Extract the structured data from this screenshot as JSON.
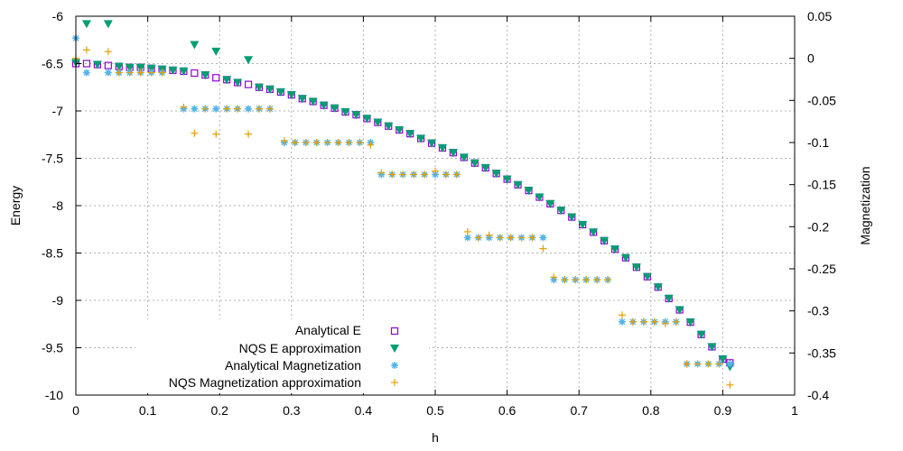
{
  "chart_data": {
    "type": "scatter",
    "xlabel": "h",
    "ylabel": "Energy",
    "y2label": "Magnetization",
    "xlim": [
      0,
      1
    ],
    "ylim": [
      -10,
      -6
    ],
    "y2lim": [
      -0.4,
      0.05
    ],
    "xticks": [
      "0",
      "0.1",
      "0.2",
      "0.3",
      "0.4",
      "0.5",
      "0.6",
      "0.7",
      "0.8",
      "0.9",
      "1"
    ],
    "yticks": [
      "-6",
      "-6.5",
      "-7",
      "-7.5",
      "-8",
      "-8.5",
      "-9",
      "-9.5",
      "-10"
    ],
    "y2ticks": [
      "0.05",
      "0",
      "-0.05",
      "-0.1",
      "-0.15",
      "-0.2",
      "-0.25",
      "-0.3",
      "-0.35",
      "-0.4"
    ],
    "grid": true,
    "legend_position": "bottom-center",
    "series": [
      {
        "name": "Analytical E",
        "axis": "y1",
        "marker": "open-square",
        "color": "#9400d3",
        "x": [
          0,
          0.015,
          0.03,
          0.045,
          0.06,
          0.075,
          0.09,
          0.105,
          0.12,
          0.135,
          0.15,
          0.165,
          0.18,
          0.195,
          0.21,
          0.225,
          0.24,
          0.255,
          0.27,
          0.285,
          0.3,
          0.315,
          0.33,
          0.345,
          0.36,
          0.375,
          0.39,
          0.405,
          0.42,
          0.435,
          0.45,
          0.465,
          0.48,
          0.495,
          0.51,
          0.525,
          0.54,
          0.555,
          0.57,
          0.585,
          0.6,
          0.615,
          0.63,
          0.645,
          0.66,
          0.675,
          0.69,
          0.705,
          0.72,
          0.735,
          0.75,
          0.765,
          0.78,
          0.795,
          0.81,
          0.825,
          0.84,
          0.855,
          0.87,
          0.885,
          0.9,
          0.91
        ],
        "y": [
          -6.5,
          -6.5,
          -6.51,
          -6.52,
          -6.53,
          -6.54,
          -6.54,
          -6.55,
          -6.56,
          -6.57,
          -6.58,
          -6.6,
          -6.62,
          -6.65,
          -6.67,
          -6.7,
          -6.72,
          -6.75,
          -6.77,
          -6.8,
          -6.83,
          -6.87,
          -6.9,
          -6.94,
          -6.97,
          -7.01,
          -7.04,
          -7.08,
          -7.12,
          -7.16,
          -7.2,
          -7.24,
          -7.29,
          -7.34,
          -7.39,
          -7.44,
          -7.49,
          -7.55,
          -7.6,
          -7.66,
          -7.72,
          -7.78,
          -7.84,
          -7.91,
          -7.98,
          -8.05,
          -8.12,
          -8.2,
          -8.28,
          -8.37,
          -8.46,
          -8.55,
          -8.65,
          -8.75,
          -8.86,
          -8.98,
          -9.1,
          -9.23,
          -9.36,
          -9.49,
          -9.62,
          -9.66
        ]
      },
      {
        "name": "NQS E approximation",
        "axis": "y1",
        "marker": "filled-triangle-down",
        "color": "#009e73",
        "x": [
          0,
          0.015,
          0.03,
          0.045,
          0.06,
          0.075,
          0.09,
          0.105,
          0.12,
          0.135,
          0.15,
          0.165,
          0.18,
          0.195,
          0.21,
          0.225,
          0.24,
          0.255,
          0.27,
          0.285,
          0.3,
          0.315,
          0.33,
          0.345,
          0.36,
          0.375,
          0.39,
          0.405,
          0.42,
          0.435,
          0.45,
          0.465,
          0.48,
          0.495,
          0.51,
          0.525,
          0.54,
          0.555,
          0.57,
          0.585,
          0.6,
          0.615,
          0.63,
          0.645,
          0.66,
          0.675,
          0.69,
          0.705,
          0.72,
          0.735,
          0.75,
          0.765,
          0.78,
          0.795,
          0.81,
          0.825,
          0.84,
          0.855,
          0.87,
          0.885,
          0.9,
          0.91
        ],
        "y": [
          -6.49,
          -6.08,
          -6.51,
          -6.08,
          -6.53,
          -6.54,
          -6.54,
          -6.55,
          -6.56,
          -6.57,
          -6.58,
          -6.3,
          -6.62,
          -6.37,
          -6.67,
          -6.7,
          -6.46,
          -6.75,
          -6.77,
          -6.8,
          -6.83,
          -6.87,
          -6.9,
          -6.94,
          -6.97,
          -7.01,
          -7.04,
          -7.08,
          -7.12,
          -7.16,
          -7.2,
          -7.24,
          -7.29,
          -7.34,
          -7.39,
          -7.44,
          -7.49,
          -7.55,
          -7.6,
          -7.66,
          -7.72,
          -7.78,
          -7.84,
          -7.91,
          -7.98,
          -8.05,
          -8.12,
          -8.2,
          -8.28,
          -8.37,
          -8.46,
          -8.55,
          -8.65,
          -8.75,
          -8.86,
          -8.98,
          -9.1,
          -9.23,
          -9.36,
          -9.49,
          -9.62,
          -9.7
        ]
      },
      {
        "name": "Analytical Magnetization",
        "axis": "y2",
        "marker": "filled-star",
        "color": "#56b4e9",
        "x": [
          0,
          0.015,
          0.045,
          0.06,
          0.075,
          0.09,
          0.105,
          0.12,
          0.15,
          0.165,
          0.18,
          0.195,
          0.21,
          0.225,
          0.24,
          0.255,
          0.27,
          0.29,
          0.305,
          0.32,
          0.335,
          0.35,
          0.365,
          0.38,
          0.395,
          0.41,
          0.425,
          0.44,
          0.455,
          0.47,
          0.485,
          0.5,
          0.515,
          0.53,
          0.545,
          0.56,
          0.575,
          0.59,
          0.605,
          0.62,
          0.635,
          0.65,
          0.665,
          0.68,
          0.695,
          0.71,
          0.725,
          0.74,
          0.76,
          0.775,
          0.79,
          0.805,
          0.82,
          0.835,
          0.85,
          0.865,
          0.88,
          0.895,
          0.91
        ],
        "y": [
          0.024,
          -0.017,
          -0.017,
          -0.017,
          -0.017,
          -0.017,
          -0.017,
          -0.017,
          -0.06,
          -0.06,
          -0.06,
          -0.06,
          -0.06,
          -0.06,
          -0.06,
          -0.06,
          -0.06,
          -0.1,
          -0.1,
          -0.1,
          -0.1,
          -0.1,
          -0.1,
          -0.1,
          -0.1,
          -0.1,
          -0.138,
          -0.138,
          -0.138,
          -0.138,
          -0.138,
          -0.138,
          -0.138,
          -0.138,
          -0.213,
          -0.213,
          -0.213,
          -0.213,
          -0.213,
          -0.213,
          -0.213,
          -0.213,
          -0.263,
          -0.263,
          -0.263,
          -0.263,
          -0.263,
          -0.263,
          -0.313,
          -0.313,
          -0.313,
          -0.313,
          -0.313,
          -0.313,
          -0.363,
          -0.363,
          -0.363,
          -0.363,
          -0.363
        ]
      },
      {
        "name": "NQS Magnetization approximation",
        "axis": "y2",
        "marker": "plus",
        "color": "#e69f00",
        "x": [
          0,
          0.015,
          0.045,
          0.06,
          0.075,
          0.09,
          0.105,
          0.12,
          0.15,
          0.165,
          0.18,
          0.195,
          0.21,
          0.225,
          0.24,
          0.255,
          0.27,
          0.29,
          0.305,
          0.32,
          0.335,
          0.35,
          0.365,
          0.38,
          0.395,
          0.41,
          0.425,
          0.44,
          0.455,
          0.47,
          0.485,
          0.5,
          0.515,
          0.53,
          0.545,
          0.56,
          0.575,
          0.59,
          0.605,
          0.62,
          0.635,
          0.65,
          0.665,
          0.68,
          0.695,
          0.71,
          0.725,
          0.74,
          0.76,
          0.775,
          0.79,
          0.805,
          0.82,
          0.835,
          0.85,
          0.865,
          0.88,
          0.895,
          0.91
        ],
        "y": [
          0,
          0.01,
          0.008,
          -0.017,
          -0.017,
          -0.017,
          -0.017,
          -0.017,
          -0.058,
          -0.089,
          -0.06,
          -0.09,
          -0.06,
          -0.06,
          -0.09,
          -0.06,
          -0.06,
          -0.098,
          -0.1,
          -0.1,
          -0.1,
          -0.1,
          -0.1,
          -0.1,
          -0.1,
          -0.103,
          -0.136,
          -0.138,
          -0.138,
          -0.138,
          -0.138,
          -0.134,
          -0.138,
          -0.138,
          -0.206,
          -0.213,
          -0.21,
          -0.213,
          -0.213,
          -0.213,
          -0.213,
          -0.226,
          -0.26,
          -0.263,
          -0.263,
          -0.263,
          -0.263,
          -0.263,
          -0.305,
          -0.313,
          -0.313,
          -0.313,
          -0.315,
          -0.313,
          -0.363,
          -0.363,
          -0.363,
          -0.363,
          -0.388
        ]
      }
    ]
  }
}
